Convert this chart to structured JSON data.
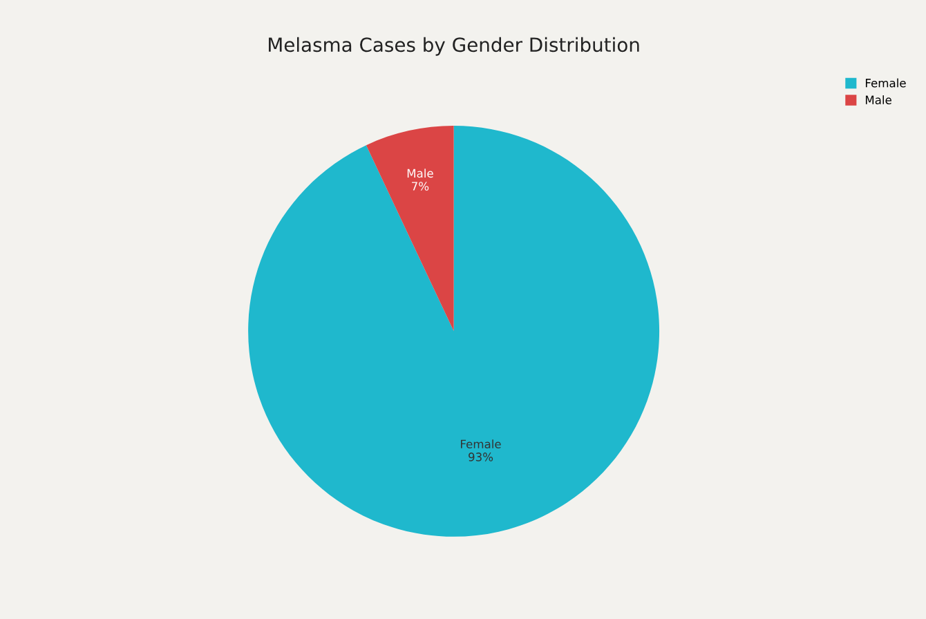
{
  "chart_data": {
    "type": "pie",
    "title": "Melasma Cases by Gender Distribution",
    "categories": [
      "Female",
      "Male"
    ],
    "values": [
      93,
      7
    ],
    "value_labels": [
      "93%",
      "7%"
    ],
    "colors": [
      "#1fb8cd",
      "#db4545"
    ],
    "legend": "top right"
  }
}
